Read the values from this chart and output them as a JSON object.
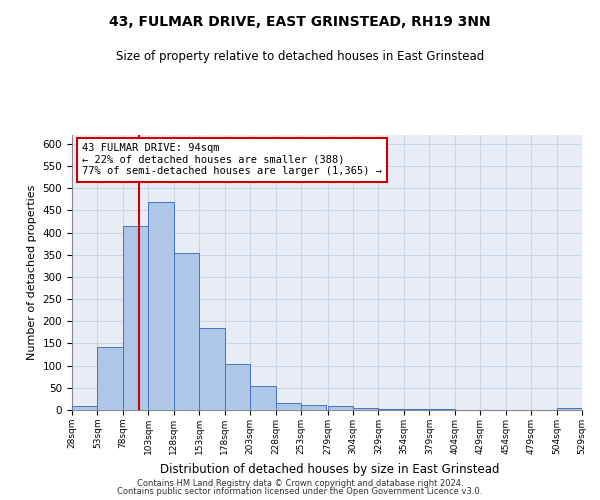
{
  "title": "43, FULMAR DRIVE, EAST GRINSTEAD, RH19 3NN",
  "subtitle": "Size of property relative to detached houses in East Grinstead",
  "xlabel": "Distribution of detached houses by size in East Grinstead",
  "ylabel": "Number of detached properties",
  "footer_line1": "Contains HM Land Registry data © Crown copyright and database right 2024.",
  "footer_line2": "Contains public sector information licensed under the Open Government Licence v3.0.",
  "bin_edges": [
    28,
    53,
    78,
    103,
    128,
    153,
    178,
    203,
    228,
    253,
    279,
    304,
    329,
    354,
    379,
    404,
    429,
    454,
    479,
    504,
    529
  ],
  "bin_heights": [
    10,
    143,
    415,
    468,
    354,
    185,
    103,
    54,
    15,
    12,
    10,
    5,
    3,
    2,
    2,
    1,
    1,
    0,
    0,
    5
  ],
  "bar_color": "#aec6e8",
  "bar_edge_color": "#4472c4",
  "property_size": 94,
  "vline_color": "#cc0000",
  "annotation_line1": "43 FULMAR DRIVE: 94sqm",
  "annotation_line2": "← 22% of detached houses are smaller (388)",
  "annotation_line3": "77% of semi-detached houses are larger (1,365) →",
  "annotation_box_color": "#cc0000",
  "ylim": [
    0,
    620
  ],
  "yticks": [
    0,
    50,
    100,
    150,
    200,
    250,
    300,
    350,
    400,
    450,
    500,
    550,
    600
  ],
  "grid_color": "#c8d4e8",
  "background_color": "#e8edf5",
  "title_fontsize": 10,
  "subtitle_fontsize": 8.5
}
